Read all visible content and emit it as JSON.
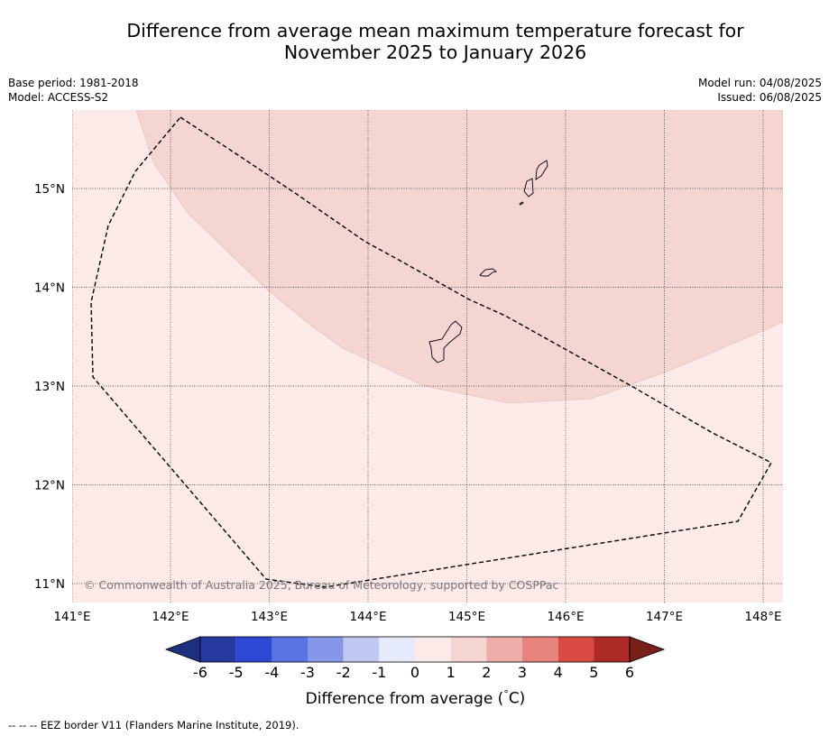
{
  "title": {
    "line1": "Difference from average mean maximum temperature forecast for",
    "line2": "November 2025 to January 2026"
  },
  "meta": {
    "base_period": "Base period: 1981-2018",
    "model": "Model: ACCESS-S2",
    "model_run": "Model run: 04/08/2025",
    "issued": "Issued: 06/08/2025"
  },
  "map": {
    "lon_labels": [
      "141°E",
      "142°E",
      "143°E",
      "144°E",
      "145°E",
      "146°E",
      "147°E",
      "148°E"
    ],
    "lat_labels": [
      "15°N",
      "14°N",
      "13°N",
      "12°N",
      "11°N"
    ],
    "copyright": "© Commonwealth of Australia 2025, Bureau of Meteorology, supported by COSPPac",
    "colors": {
      "band_0_1": "#fbeae8",
      "band_1_2": "#f5d5d2"
    }
  },
  "colorbar": {
    "labels": [
      "-6",
      "-5",
      "-4",
      "-3",
      "-2",
      "-1",
      "0",
      "1",
      "2",
      "3",
      "4",
      "5",
      "6"
    ],
    "colors": [
      "#26399e",
      "#2c48d4",
      "#5a73e2",
      "#8597e8",
      "#c0c8f1",
      "#e6ebfb",
      "#fbeae8",
      "#f5d5d2",
      "#eeaca8",
      "#e7827d",
      "#d94a42",
      "#ac2b24"
    ],
    "low_extend_color": "#1f317e",
    "high_extend_color": "#7a1f1a",
    "title": "Difference from average ( C)",
    "title_prefix": "Difference from average (",
    "title_degree": "°",
    "title_suffix": "C)"
  },
  "footnote": "--  --  -- EEZ border V11 (Flanders Marine Institute, 2019)."
}
